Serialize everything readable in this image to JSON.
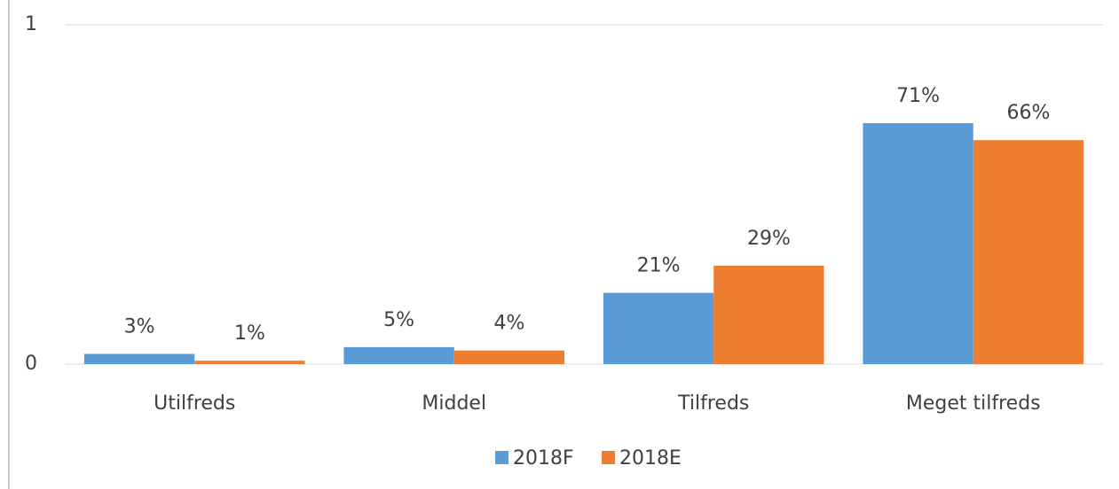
{
  "chart_data": {
    "type": "bar",
    "categories": [
      "Utilfreds",
      "Middel",
      "Tilfreds",
      "Meget tilfreds"
    ],
    "series": [
      {
        "name": "2018F",
        "color": "#5b9bd5",
        "values": [
          0.03,
          0.05,
          0.21,
          0.71
        ],
        "value_labels": [
          "3%",
          "5%",
          "21%",
          "71%"
        ]
      },
      {
        "name": "2018E",
        "color": "#ed7d31",
        "values": [
          0.01,
          0.04,
          0.29,
          0.66
        ],
        "value_labels": [
          "1%",
          "4%",
          "29%",
          "66%"
        ]
      }
    ],
    "ylim": [
      0,
      1
    ],
    "yticks": [
      0,
      1
    ],
    "grid": true,
    "legend": "bottom"
  }
}
